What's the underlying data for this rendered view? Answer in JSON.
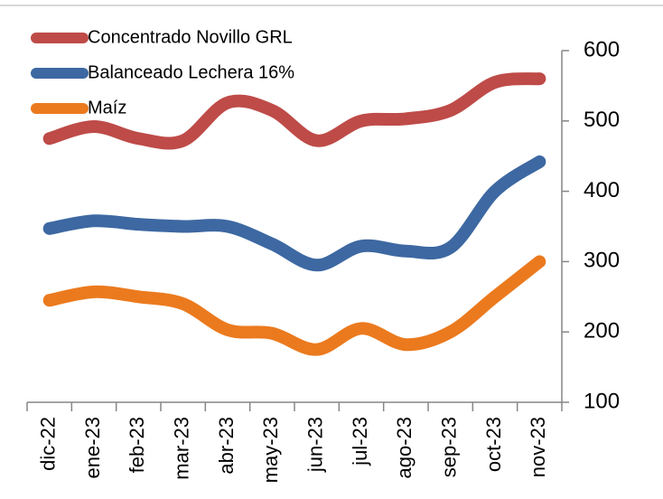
{
  "chart_data": {
    "type": "line",
    "categories": [
      "dic-22",
      "ene-23",
      "feb-23",
      "mar-23",
      "abr-23",
      "may-23",
      "jun-23",
      "jul-23",
      "ago-23",
      "sep-23",
      "oct-23",
      "nov-23"
    ],
    "series": [
      {
        "name": "Concentrado Novillo GRL",
        "color": "#be4b48",
        "values": [
          475,
          492,
          475,
          472,
          526,
          515,
          472,
          500,
          503,
          515,
          555,
          560
        ]
      },
      {
        "name": "Balanceado Lechera 16%",
        "color": "#3d68a2",
        "values": [
          347,
          358,
          353,
          350,
          350,
          325,
          295,
          322,
          315,
          320,
          400,
          442
        ]
      },
      {
        "name": "Maíz",
        "color": "#eb7a1e",
        "values": [
          245,
          257,
          250,
          240,
          203,
          198,
          175,
          205,
          182,
          200,
          250,
          300
        ]
      }
    ],
    "ylim": [
      100,
      600
    ],
    "yticks": [
      100,
      200,
      300,
      400,
      500,
      600
    ],
    "y_axis_side": "right",
    "legend": "upper left"
  }
}
